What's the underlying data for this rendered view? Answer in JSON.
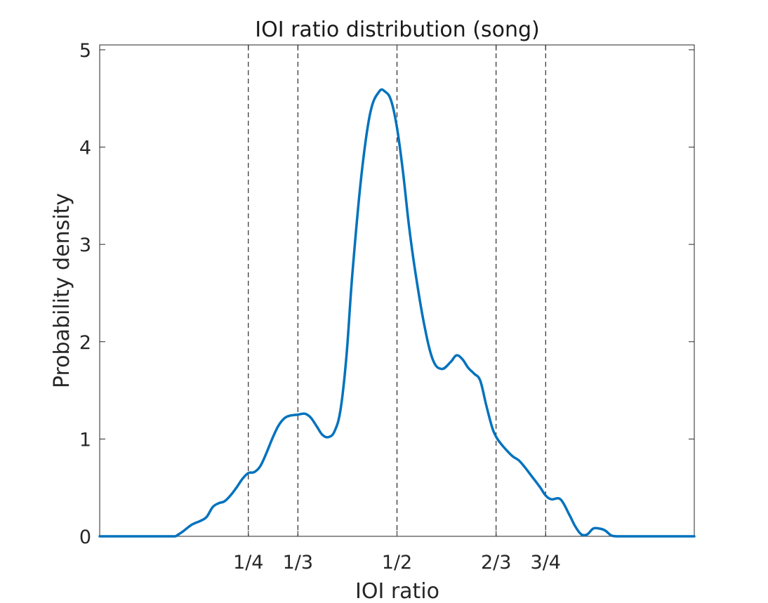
{
  "chart_data": {
    "type": "line",
    "title": "IOI ratio distribution (song)",
    "xlabel": "IOI ratio",
    "ylabel": "Probability density",
    "xlim": [
      0,
      1
    ],
    "ylim": [
      0,
      5
    ],
    "yticks": [
      0,
      1,
      2,
      3,
      4,
      5
    ],
    "xticks": [
      {
        "label": "1/4",
        "value": 0.25
      },
      {
        "label": "1/3",
        "value": 0.3333
      },
      {
        "label": "1/2",
        "value": 0.5
      },
      {
        "label": "2/3",
        "value": 0.6667
      },
      {
        "label": "3/4",
        "value": 0.75
      }
    ],
    "reference_lines": [
      0.25,
      0.3333,
      0.5,
      0.6667,
      0.75
    ],
    "grid": false,
    "series": [
      {
        "color": "#0072BD",
        "x": [
          0.0,
          0.05,
          0.1,
          0.125,
          0.13,
          0.14,
          0.155,
          0.17,
          0.18,
          0.19,
          0.2,
          0.21,
          0.22,
          0.23,
          0.24,
          0.25,
          0.26,
          0.27,
          0.28,
          0.29,
          0.3,
          0.31,
          0.32,
          0.333,
          0.345,
          0.355,
          0.365,
          0.375,
          0.385,
          0.395,
          0.405,
          0.415,
          0.425,
          0.44,
          0.455,
          0.47,
          0.48,
          0.49,
          0.5,
          0.51,
          0.52,
          0.53,
          0.545,
          0.56,
          0.575,
          0.59,
          0.6,
          0.61,
          0.62,
          0.63,
          0.64,
          0.65,
          0.66,
          0.667,
          0.675,
          0.685,
          0.695,
          0.705,
          0.715,
          0.725,
          0.74,
          0.75,
          0.76,
          0.775,
          0.79,
          0.8,
          0.81,
          0.82,
          0.83,
          0.84,
          0.85,
          0.86,
          0.87,
          0.88,
          0.89,
          0.9,
          0.925,
          0.95,
          1.0
        ],
        "values": [
          0.0,
          0.0,
          0.0,
          0.0,
          0.01,
          0.05,
          0.12,
          0.16,
          0.2,
          0.3,
          0.34,
          0.36,
          0.42,
          0.5,
          0.59,
          0.65,
          0.66,
          0.72,
          0.85,
          1.0,
          1.13,
          1.21,
          1.24,
          1.25,
          1.26,
          1.22,
          1.13,
          1.04,
          1.02,
          1.08,
          1.3,
          1.85,
          2.7,
          3.7,
          4.35,
          4.57,
          4.57,
          4.48,
          4.2,
          3.75,
          3.2,
          2.75,
          2.2,
          1.82,
          1.72,
          1.79,
          1.86,
          1.82,
          1.73,
          1.67,
          1.6,
          1.35,
          1.12,
          1.02,
          0.95,
          0.88,
          0.82,
          0.78,
          0.71,
          0.63,
          0.51,
          0.42,
          0.38,
          0.38,
          0.22,
          0.1,
          0.02,
          0.02,
          0.08,
          0.08,
          0.06,
          0.01,
          0.0,
          0.0,
          0.0,
          0.0,
          0.0,
          0.0,
          0.0
        ]
      }
    ]
  }
}
